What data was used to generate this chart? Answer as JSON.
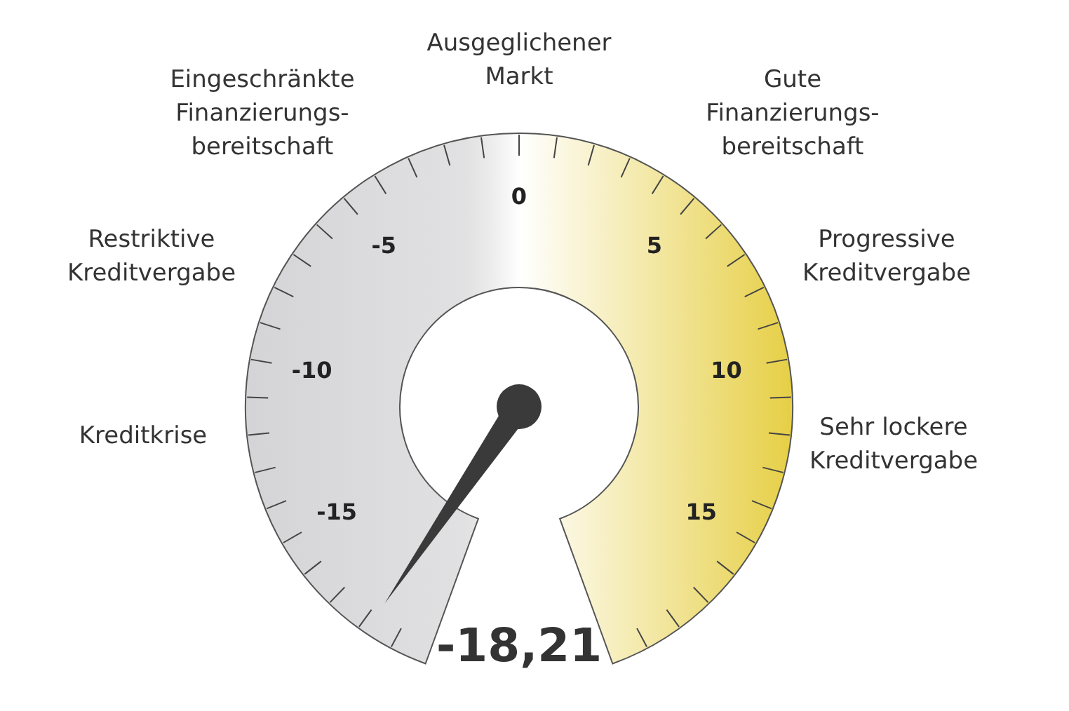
{
  "chart_data": {
    "type": "other",
    "values": [
      -18.21
    ],
    "value_labels": [
      "-18,21"
    ],
    "color": "#e6cf45",
    "annotations": [
      "Kreditkrise",
      "Restriktive\nKreditvergabe",
      "Eingeschränkte\nFinanzierungs-\nbereitschaft",
      "Ausgeglichener\nMarkt",
      "Gute\nFinanzierungs-\nbereitschaft",
      "Progressive\nKreditvergabe",
      "Sehr lockere\nKreditvergabe",
      "-15",
      "-10",
      "-5",
      "0",
      "5",
      "10",
      "15"
    ]
  }
}
